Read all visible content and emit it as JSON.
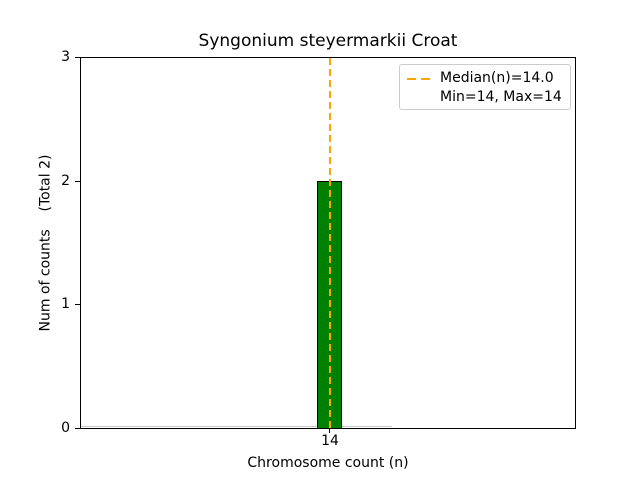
{
  "chart_data": {
    "type": "bar",
    "title": "Syngonium steyermarkii Croat",
    "xlabel": "Chromosome count (n)",
    "ylabel": "Num of counts    (Total 2)",
    "categories": [
      14
    ],
    "values": [
      2
    ],
    "total": 2,
    "median": 14.0,
    "min": 14,
    "max": 14,
    "ylim": [
      0,
      3
    ],
    "ytick_labels": [
      "3",
      "2",
      "1",
      "0"
    ],
    "xtick_labels": [
      "14"
    ],
    "grid": false,
    "legend": {
      "position": "upper right",
      "entries": [
        {
          "label": "Median(n)=14.0",
          "marker": "orange-dashed-line"
        },
        {
          "label": "Min=14, Max=14",
          "marker": "none"
        }
      ]
    },
    "colors": {
      "bar_fill": "#008000",
      "bar_edge": "#000000",
      "median_line": "#FFA500",
      "axis": "#000000",
      "legend_border": "#cccccc",
      "background": "#ffffff",
      "baseline_artifact": "#c9c9c9"
    }
  }
}
